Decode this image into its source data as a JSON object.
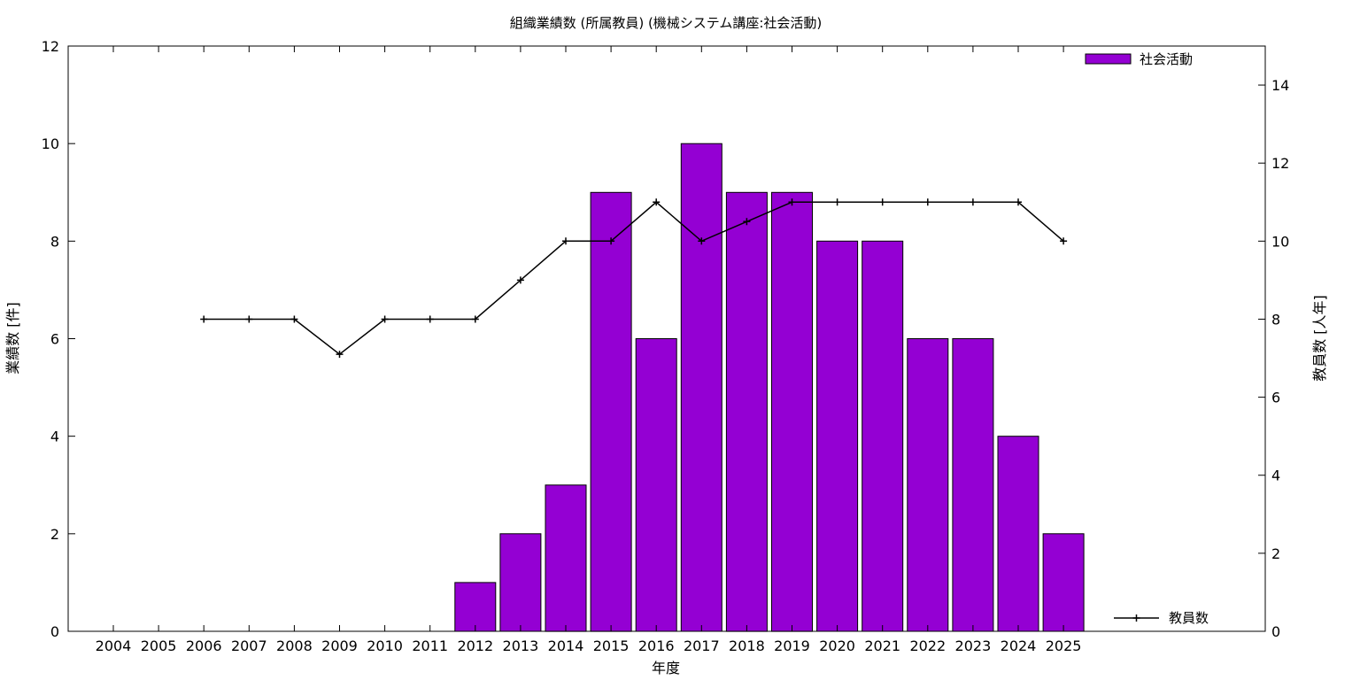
{
  "chart_data": {
    "type": "bar",
    "title": "組織業績数 (所属教員) (機械システム講座:社会活動)",
    "xlabel": "年度",
    "ylabel": "業績数 [件]",
    "y2label": "教員数 [人年]",
    "categories": [
      "2004",
      "2005",
      "2006",
      "2007",
      "2008",
      "2009",
      "2010",
      "2011",
      "2012",
      "2013",
      "2014",
      "2015",
      "2016",
      "2017",
      "2018",
      "2019",
      "2020",
      "2021",
      "2022",
      "2023",
      "2024",
      "2025"
    ],
    "ylim": [
      0,
      12
    ],
    "y2lim": [
      0,
      15
    ],
    "yticks": [
      0,
      2,
      4,
      6,
      8,
      10,
      12
    ],
    "y2ticks": [
      0,
      2,
      4,
      6,
      8,
      10,
      12,
      14
    ],
    "grid": false,
    "bar_color": "#9400d3",
    "line_color": "#000000",
    "bar_legend_placement": "top-right",
    "line_legend_placement": "bottom-right",
    "series": [
      {
        "name": "社会活動",
        "kind": "bar",
        "axis": "left",
        "values": [
          0,
          0,
          0,
          0,
          0,
          0,
          0,
          0,
          1,
          2,
          3,
          9,
          6,
          10,
          9,
          9,
          8,
          8,
          6,
          6,
          4,
          2
        ]
      },
      {
        "name": "教員数",
        "kind": "line",
        "axis": "right",
        "values": [
          null,
          null,
          8,
          8,
          8,
          7.1,
          8,
          8,
          8,
          9,
          10,
          10,
          11,
          10,
          10.5,
          11,
          11,
          11,
          11,
          11,
          11,
          10
        ]
      }
    ]
  }
}
